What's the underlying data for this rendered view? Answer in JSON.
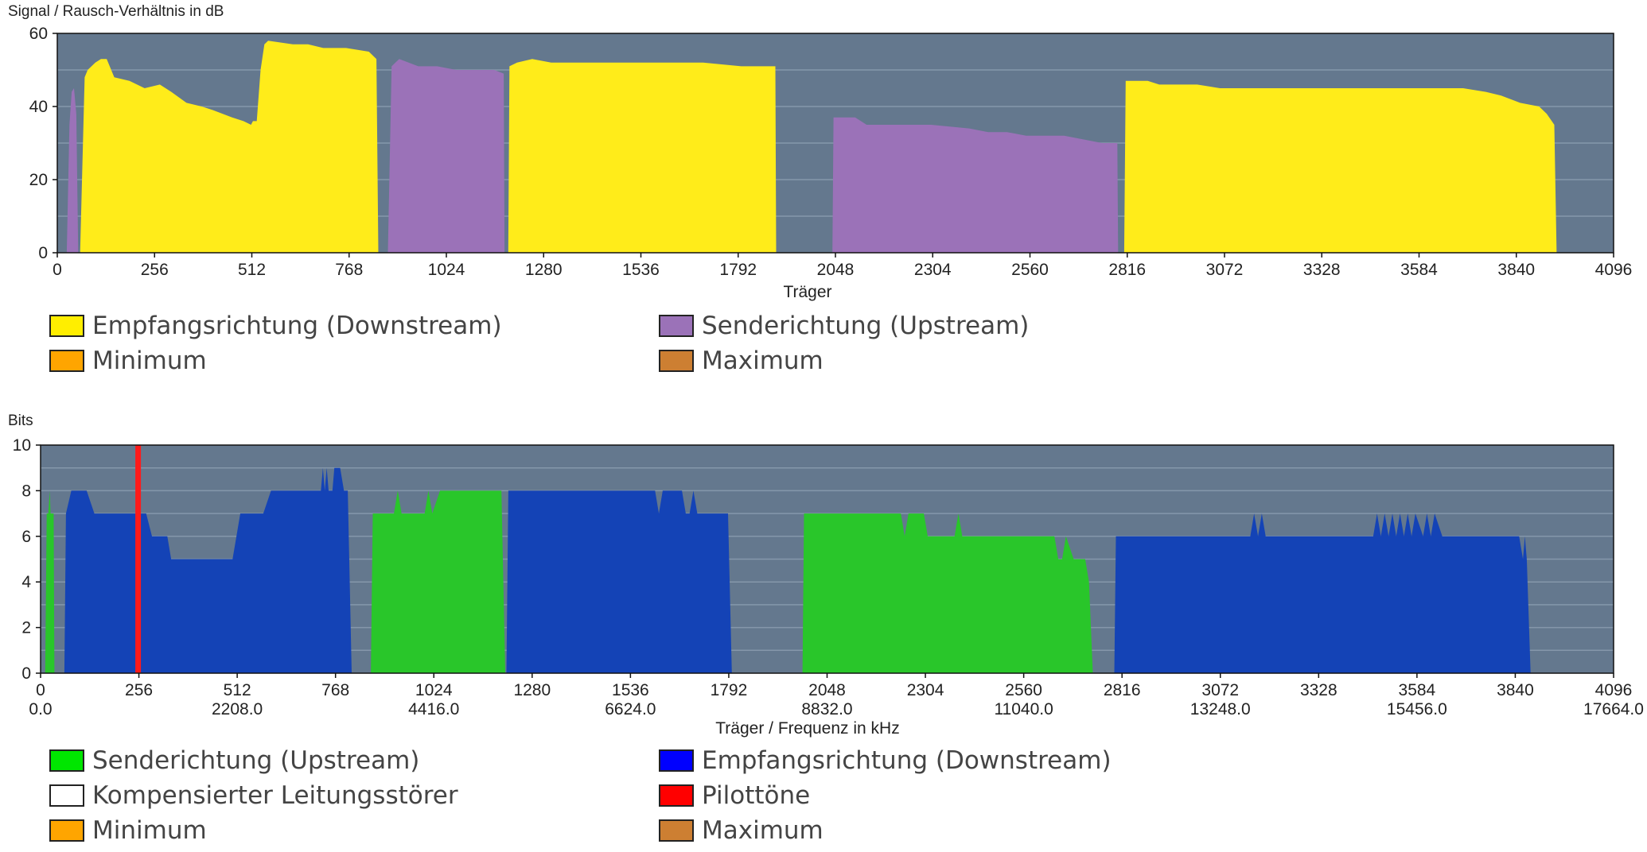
{
  "chart_data": [
    {
      "type": "area",
      "ylabel": "Signal / Rausch-Verhältnis in dB",
      "xlabel": "Träger",
      "xlim": [
        0,
        4096
      ],
      "ylim": [
        0,
        60
      ],
      "x_ticks": [
        "0",
        "256",
        "512",
        "768",
        "1024",
        "1280",
        "1536",
        "1792",
        "2048",
        "2304",
        "2560",
        "2816",
        "3072",
        "3328",
        "3584",
        "3840",
        "4096"
      ],
      "y_ticks": [
        "0",
        "20",
        "40",
        "60"
      ],
      "background_color": "#64788e",
      "series": [
        {
          "name": "Senderichtung (Upstream)",
          "color": "#9b72b8",
          "segments": [
            [
              [
                25,
                0
              ],
              [
                32,
                35
              ],
              [
                38,
                44
              ],
              [
                44,
                45
              ],
              [
                50,
                38
              ],
              [
                55,
                0
              ]
            ],
            [
              [
                870,
                0
              ],
              [
                880,
                51
              ],
              [
                890,
                52
              ],
              [
                900,
                53
              ],
              [
                950,
                51
              ],
              [
                1000,
                51
              ],
              [
                1050,
                50
              ],
              [
                1100,
                50
              ],
              [
                1150,
                50
              ],
              [
                1175,
                49
              ],
              [
                1177,
                0
              ]
            ],
            [
              [
                2040,
                0
              ],
              [
                2043,
                37
              ],
              [
                2100,
                37
              ],
              [
                2130,
                35
              ],
              [
                2200,
                35
              ],
              [
                2300,
                35
              ],
              [
                2400,
                34
              ],
              [
                2450,
                33
              ],
              [
                2500,
                33
              ],
              [
                2550,
                32
              ],
              [
                2650,
                32
              ],
              [
                2700,
                31
              ],
              [
                2750,
                30
              ],
              [
                2790,
                30
              ],
              [
                2792,
                0
              ]
            ]
          ]
        },
        {
          "name": "Empfangsrichtung (Downstream)",
          "color": "#ffec1a",
          "segments": [
            [
              [
                60,
                0
              ],
              [
                72,
                48
              ],
              [
                80,
                50
              ],
              [
                100,
                52
              ],
              [
                115,
                53
              ],
              [
                130,
                53
              ],
              [
                150,
                48
              ],
              [
                190,
                47
              ],
              [
                230,
                45
              ],
              [
                270,
                46
              ],
              [
                300,
                44
              ],
              [
                340,
                41
              ],
              [
                380,
                40
              ],
              [
                410,
                39
              ],
              [
                460,
                37
              ],
              [
                490,
                36
              ],
              [
                510,
                35
              ],
              [
                515,
                36
              ],
              [
                525,
                36
              ],
              [
                535,
                50
              ],
              [
                545,
                57
              ],
              [
                555,
                58
              ],
              [
                620,
                57
              ],
              [
                660,
                57
              ],
              [
                700,
                56
              ],
              [
                760,
                56
              ],
              [
                820,
                55
              ],
              [
                840,
                53
              ],
              [
                845,
                0
              ]
            ],
            [
              [
                1187,
                0
              ],
              [
                1190,
                51
              ],
              [
                1210,
                52
              ],
              [
                1250,
                53
              ],
              [
                1300,
                52
              ],
              [
                1400,
                52
              ],
              [
                1500,
                52
              ],
              [
                1550,
                52
              ],
              [
                1600,
                52
              ],
              [
                1700,
                52
              ],
              [
                1800,
                51
              ],
              [
                1880,
                51
              ],
              [
                1890,
                51
              ],
              [
                1892,
                0
              ]
            ],
            [
              [
                2808,
                0
              ],
              [
                2812,
                47
              ],
              [
                2870,
                47
              ],
              [
                2900,
                46
              ],
              [
                3000,
                46
              ],
              [
                3060,
                45
              ],
              [
                3200,
                45
              ],
              [
                3400,
                45
              ],
              [
                3600,
                45
              ],
              [
                3700,
                45
              ],
              [
                3760,
                44
              ],
              [
                3800,
                43
              ],
              [
                3850,
                41
              ],
              [
                3900,
                40
              ],
              [
                3920,
                38
              ],
              [
                3940,
                35
              ],
              [
                3946,
                0
              ]
            ]
          ]
        }
      ],
      "legend": [
        {
          "label": "Empfangsrichtung (Downstream)",
          "color": "#ffee00"
        },
        {
          "label": "Senderichtung (Upstream)",
          "color": "#9b72b8"
        },
        {
          "label": "Minimum",
          "color": "#ffa500"
        },
        {
          "label": "Maximum",
          "color": "#cd7f32"
        }
      ]
    },
    {
      "type": "area",
      "ylabel": "Bits",
      "xlabel": "Träger / Frequenz in kHz",
      "xlim": [
        0,
        4096
      ],
      "ylim": [
        0,
        10
      ],
      "x_ticks": [
        "0",
        "256",
        "512",
        "768",
        "1024",
        "1280",
        "1536",
        "1792",
        "2048",
        "2304",
        "2560",
        "2816",
        "3072",
        "3328",
        "3584",
        "3840",
        "4096"
      ],
      "freq_ticks": [
        "0.0",
        "2208.0",
        "4416.0",
        "6624.0",
        "8832.0",
        "11040.0",
        "13248.0",
        "15456.0",
        "17664.0"
      ],
      "y_ticks": [
        "0",
        "2",
        "4",
        "6",
        "8",
        "10"
      ],
      "background_color": "#64788e",
      "series": [
        {
          "name": "Senderichtung (Upstream)",
          "color": "#29c62a",
          "segments": [
            [
              [
                12,
                0
              ],
              [
                16,
                7
              ],
              [
                20,
                7
              ],
              [
                24,
                8
              ],
              [
                26,
                7
              ],
              [
                34,
                7
              ],
              [
                36,
                0
              ]
            ],
            [
              [
                860,
                0
              ],
              [
                865,
                7
              ],
              [
                920,
                7
              ],
              [
                930,
                8
              ],
              [
                940,
                7
              ],
              [
                1000,
                7
              ],
              [
                1010,
                8
              ],
              [
                1020,
                7
              ],
              [
                1040,
                8
              ],
              [
                1100,
                8
              ],
              [
                1150,
                8
              ],
              [
                1200,
                8
              ],
              [
                1210,
                0
              ]
            ],
            [
              [
                1984,
                0
              ],
              [
                1988,
                7
              ],
              [
                2000,
                7
              ],
              [
                2100,
                7
              ],
              [
                2240,
                7
              ],
              [
                2250,
                6
              ],
              [
                2260,
                7
              ],
              [
                2300,
                7
              ],
              [
                2310,
                6
              ],
              [
                2380,
                6
              ],
              [
                2390,
                7
              ],
              [
                2400,
                6
              ],
              [
                2500,
                6
              ],
              [
                2600,
                6
              ],
              [
                2640,
                6
              ],
              [
                2650,
                5
              ],
              [
                2660,
                5
              ],
              [
                2670,
                6
              ],
              [
                2690,
                5
              ],
              [
                2720,
                5
              ],
              [
                2730,
                4
              ],
              [
                2740,
                0
              ]
            ]
          ]
        },
        {
          "name": "Empfangsrichtung (Downstream)",
          "color": "#1443b6",
          "segments": [
            [
              [
                62,
                0
              ],
              [
                66,
                7
              ],
              [
                80,
                8
              ],
              [
                120,
                8
              ],
              [
                140,
                7
              ],
              [
                250,
                7
              ],
              [
                275,
                7
              ],
              [
                290,
                6
              ],
              [
                330,
                6
              ],
              [
                340,
                5
              ],
              [
                500,
                5
              ],
              [
                520,
                7
              ],
              [
                580,
                7
              ],
              [
                600,
                8
              ],
              [
                700,
                8
              ],
              [
                730,
                8
              ],
              [
                735,
                9
              ],
              [
                740,
                8
              ],
              [
                745,
                9
              ],
              [
                750,
                8
              ],
              [
                760,
                8
              ],
              [
                765,
                9
              ],
              [
                780,
                9
              ],
              [
                790,
                8
              ],
              [
                800,
                8
              ],
              [
                810,
                0
              ]
            ],
            [
              [
                1213,
                0
              ],
              [
                1218,
                8
              ],
              [
                1300,
                8
              ],
              [
                1400,
                8
              ],
              [
                1500,
                8
              ],
              [
                1550,
                8
              ],
              [
                1600,
                8
              ],
              [
                1610,
                7
              ],
              [
                1620,
                8
              ],
              [
                1670,
                8
              ],
              [
                1680,
                7
              ],
              [
                1690,
                7
              ],
              [
                1700,
                8
              ],
              [
                1710,
                7
              ],
              [
                1780,
                7
              ],
              [
                1790,
                7
              ],
              [
                1800,
                0
              ]
            ],
            [
              [
                2796,
                0
              ],
              [
                2800,
                6
              ],
              [
                2900,
                6
              ],
              [
                3000,
                6
              ],
              [
                3100,
                6
              ],
              [
                3150,
                6
              ],
              [
                3160,
                7
              ],
              [
                3170,
                6
              ],
              [
                3180,
                7
              ],
              [
                3190,
                6
              ],
              [
                3400,
                6
              ],
              [
                3470,
                6
              ],
              [
                3480,
                7
              ],
              [
                3490,
                6
              ],
              [
                3500,
                7
              ],
              [
                3510,
                6
              ],
              [
                3520,
                7
              ],
              [
                3530,
                6
              ],
              [
                3540,
                7
              ],
              [
                3550,
                6
              ],
              [
                3560,
                7
              ],
              [
                3570,
                6
              ],
              [
                3580,
                7
              ],
              [
                3600,
                6
              ],
              [
                3610,
                7
              ],
              [
                3620,
                6
              ],
              [
                3630,
                7
              ],
              [
                3650,
                6
              ],
              [
                3700,
                6
              ],
              [
                3850,
                6
              ],
              [
                3860,
                5
              ],
              [
                3865,
                6
              ],
              [
                3870,
                5
              ],
              [
                3880,
                0
              ]
            ]
          ]
        }
      ],
      "pilot_tone_carrier": 254,
      "legend": [
        {
          "label": "Senderichtung (Upstream)",
          "color": "#00e600"
        },
        {
          "label": "Empfangsrichtung (Downstream)",
          "color": "#0000ff"
        },
        {
          "label": "Kompensierter Leitungsstörer",
          "color": "#ffffff"
        },
        {
          "label": "Pilottöne",
          "color": "#ff0000"
        },
        {
          "label": "Minimum",
          "color": "#ffa500"
        },
        {
          "label": "Maximum",
          "color": "#cd7f32"
        }
      ]
    }
  ]
}
